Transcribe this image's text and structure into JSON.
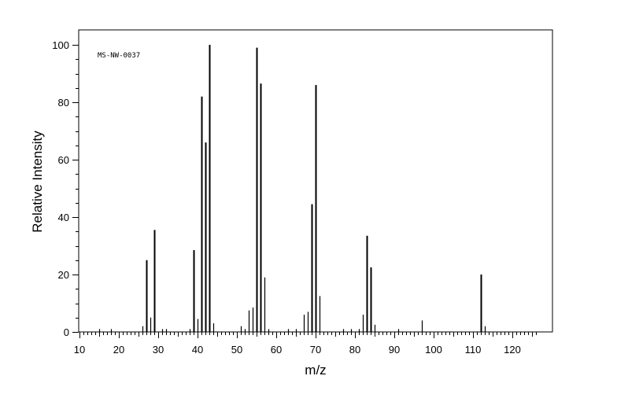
{
  "chart_data": {
    "type": "bar",
    "title": "",
    "annotation": "MS-NW-0037",
    "xlabel": "m/z",
    "ylabel": "Relative Intensity",
    "xlim": [
      10,
      130
    ],
    "ylim": [
      0,
      100
    ],
    "x_ticks": [
      10,
      20,
      30,
      40,
      50,
      60,
      70,
      80,
      90,
      100,
      110,
      120
    ],
    "y_ticks": [
      0,
      20,
      40,
      60,
      80,
      100
    ],
    "grid": false,
    "series": [
      {
        "x": [
          15,
          18,
          26,
          27,
          28,
          29,
          31,
          32,
          38,
          39,
          40,
          41,
          42,
          43,
          44,
          51,
          52,
          53,
          54,
          55,
          56,
          57,
          58,
          63,
          65,
          67,
          68,
          69,
          70,
          71,
          77,
          79,
          81,
          82,
          83,
          84,
          85,
          91,
          97,
          112,
          113
        ],
        "y": [
          1,
          1,
          2,
          25,
          5,
          35.5,
          1,
          1,
          1,
          28.5,
          4.5,
          82,
          66,
          100,
          3,
          2,
          1,
          7.5,
          8.5,
          99,
          86.5,
          19,
          1,
          1,
          1,
          6,
          7,
          44.5,
          86,
          12.5,
          1,
          1,
          1,
          6,
          33.5,
          22.5,
          2.5,
          1,
          4,
          20,
          2
        ]
      }
    ]
  }
}
